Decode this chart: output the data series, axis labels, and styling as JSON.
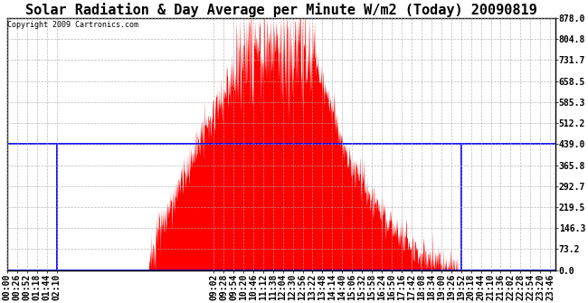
{
  "title": "Solar Radiation & Day Average per Minute W/m2 (Today) 20090819",
  "copyright": "Copyright 2009 Cartronics.com",
  "ymax": 878.0,
  "ymin": 0.0,
  "yticks": [
    0.0,
    73.2,
    146.3,
    219.5,
    292.7,
    365.8,
    439.0,
    512.2,
    585.3,
    658.5,
    731.7,
    804.8,
    878.0
  ],
  "bg_color": "#ffffff",
  "plot_bg_color": "#ffffff",
  "grid_color": "#aaaaaa",
  "fill_color": "#ff0000",
  "avg_line_color": "#0000ff",
  "avg_value": 439.0,
  "title_fontsize": 11,
  "tick_fontsize": 7,
  "n_points": 1440,
  "xtick_labels": [
    "00:00",
    "00:26",
    "00:52",
    "01:18",
    "01:44",
    "02:10",
    "09:02",
    "09:28",
    "09:54",
    "10:20",
    "10:46",
    "11:12",
    "11:38",
    "12:04",
    "12:30",
    "12:56",
    "13:22",
    "13:48",
    "14:14",
    "14:40",
    "15:06",
    "15:32",
    "15:58",
    "16:24",
    "16:50",
    "17:16",
    "17:42",
    "18:08",
    "18:34",
    "19:00",
    "19:26",
    "19:52",
    "20:18",
    "20:44",
    "21:10",
    "21:36",
    "22:02",
    "22:28",
    "22:54",
    "23:20",
    "23:46"
  ],
  "avg_start_label": "02:10",
  "avg_end_label": "19:52"
}
